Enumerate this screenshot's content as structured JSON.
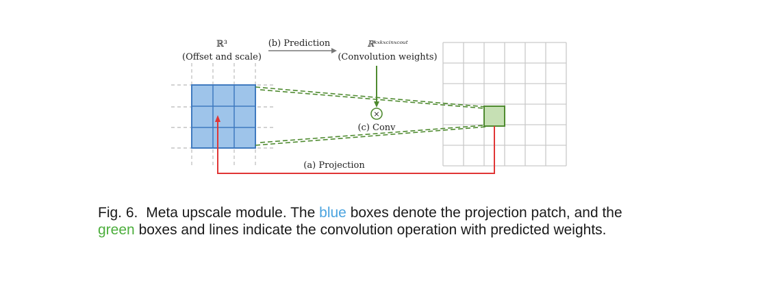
{
  "figure": {
    "label_offset_space": "ℝ³",
    "label_offset_desc": "(Offset and scale)",
    "label_prediction": "(b) Prediction",
    "label_weight_space": "ℝᵏˣᵏˣᶜⁱⁿˣᶜᵒᵘᵗ",
    "label_weight_desc": "(Convolution weights)",
    "label_conv": "(c) Conv",
    "label_projection": "(a) Projection",
    "multiply_symbol": "×",
    "colors": {
      "blue_fill": "#9ec4ea",
      "blue_stroke": "#3e79bf",
      "green_fill": "#c6e0b4",
      "green_stroke": "#4e8a2f",
      "red": "#e03535",
      "grid": "#c9c9c9"
    }
  },
  "caption": {
    "label": "Fig. 6.",
    "part1": "Meta upscale module. The",
    "blue_word": "blue",
    "part2": "boxes denote the projection patch, and the",
    "green_word": "green",
    "part3": "boxes and lines indicate the convolution operation with predicted weights."
  }
}
